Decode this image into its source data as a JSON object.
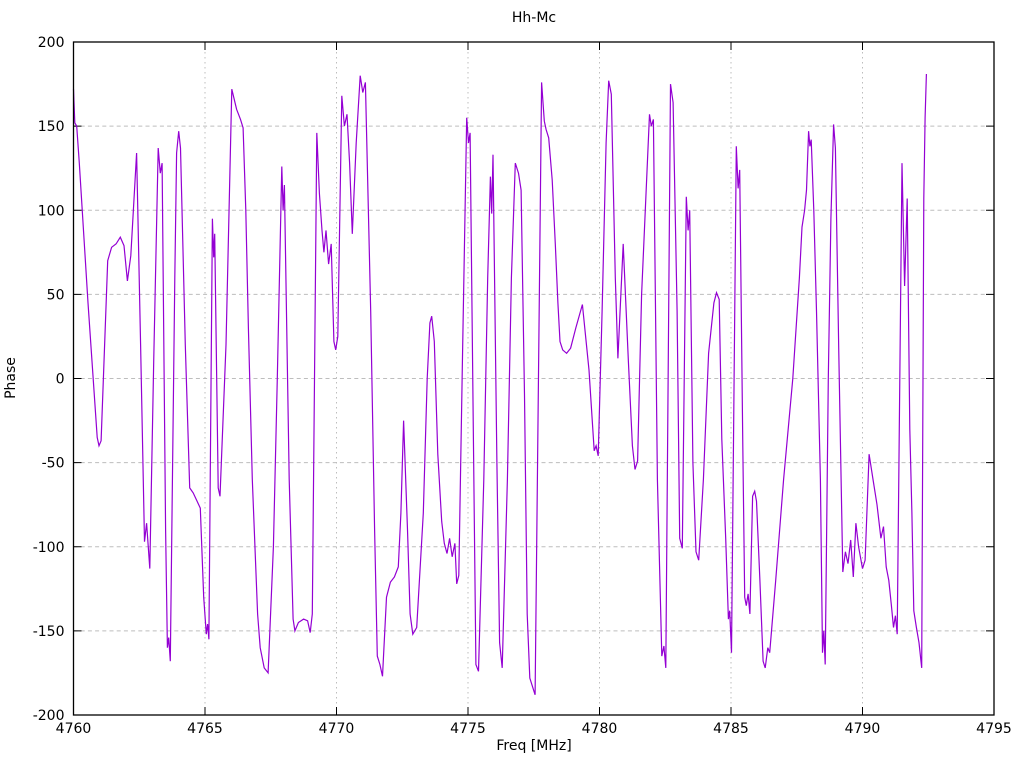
{
  "chart_data": {
    "type": "line",
    "title": "Hh-Mc",
    "xlabel": "Freq [MHz]",
    "ylabel": "Phase",
    "xlim": [
      4760,
      4795
    ],
    "ylim": [
      -200,
      200
    ],
    "xticks": [
      4760,
      4765,
      4770,
      4775,
      4780,
      4785,
      4790,
      4795
    ],
    "yticks": [
      -200,
      -150,
      -100,
      -50,
      0,
      50,
      100,
      150,
      200
    ],
    "grid": true,
    "legend": "none",
    "line_color": "#9400d3",
    "grid_color": "#bdbdbd",
    "border_color": "#000000",
    "series_name": "Hh-Mc",
    "points": [
      [
        4760.0,
        172
      ],
      [
        4760.05,
        152
      ],
      [
        4760.12,
        150
      ],
      [
        4760.22,
        128
      ],
      [
        4760.55,
        45
      ],
      [
        4760.9,
        -35
      ],
      [
        4760.97,
        -40
      ],
      [
        4761.05,
        -37
      ],
      [
        4761.3,
        70
      ],
      [
        4761.45,
        78
      ],
      [
        4761.62,
        80
      ],
      [
        4761.78,
        84
      ],
      [
        4761.92,
        79
      ],
      [
        4762.05,
        58
      ],
      [
        4762.18,
        73
      ],
      [
        4762.4,
        134
      ],
      [
        4762.55,
        20
      ],
      [
        4762.7,
        -97
      ],
      [
        4762.78,
        -86
      ],
      [
        4762.9,
        -113
      ],
      [
        4763.05,
        10
      ],
      [
        4763.22,
        137
      ],
      [
        4763.3,
        122
      ],
      [
        4763.37,
        128
      ],
      [
        4763.5,
        -90
      ],
      [
        4763.57,
        -160
      ],
      [
        4763.62,
        -154
      ],
      [
        4763.68,
        -168
      ],
      [
        4763.85,
        60
      ],
      [
        4763.92,
        134
      ],
      [
        4764.0,
        147
      ],
      [
        4764.07,
        137
      ],
      [
        4764.25,
        20
      ],
      [
        4764.42,
        -65
      ],
      [
        4764.55,
        -68
      ],
      [
        4764.7,
        -73
      ],
      [
        4764.82,
        -77
      ],
      [
        4764.95,
        -130
      ],
      [
        4765.05,
        -152
      ],
      [
        4765.1,
        -146
      ],
      [
        4765.15,
        -155
      ],
      [
        4765.28,
        95
      ],
      [
        4765.33,
        72
      ],
      [
        4765.37,
        86
      ],
      [
        4765.5,
        -65
      ],
      [
        4765.57,
        -70
      ],
      [
        4765.8,
        20
      ],
      [
        4766.02,
        172
      ],
      [
        4766.2,
        160
      ],
      [
        4766.35,
        154
      ],
      [
        4766.45,
        149
      ],
      [
        4766.55,
        100
      ],
      [
        4766.65,
        30
      ],
      [
        4766.8,
        -60
      ],
      [
        4767.0,
        -140
      ],
      [
        4767.1,
        -160
      ],
      [
        4767.25,
        -172
      ],
      [
        4767.4,
        -175
      ],
      [
        4767.6,
        -100
      ],
      [
        4767.75,
        0
      ],
      [
        4767.92,
        126
      ],
      [
        4767.97,
        100
      ],
      [
        4768.02,
        115
      ],
      [
        4768.2,
        -60
      ],
      [
        4768.35,
        -143
      ],
      [
        4768.42,
        -150
      ],
      [
        4768.55,
        -145
      ],
      [
        4768.75,
        -143
      ],
      [
        4768.9,
        -144
      ],
      [
        4769.0,
        -151
      ],
      [
        4769.08,
        -140
      ],
      [
        4769.25,
        146
      ],
      [
        4769.35,
        110
      ],
      [
        4769.45,
        88
      ],
      [
        4769.52,
        75
      ],
      [
        4769.6,
        88
      ],
      [
        4769.7,
        68
      ],
      [
        4769.8,
        80
      ],
      [
        4769.9,
        22
      ],
      [
        4769.97,
        17
      ],
      [
        4770.05,
        25
      ],
      [
        4770.2,
        168
      ],
      [
        4770.3,
        150
      ],
      [
        4770.4,
        157
      ],
      [
        4770.5,
        128
      ],
      [
        4770.6,
        86
      ],
      [
        4770.75,
        140
      ],
      [
        4770.9,
        180
      ],
      [
        4771.0,
        170
      ],
      [
        4771.1,
        176
      ],
      [
        4771.3,
        40
      ],
      [
        4771.45,
        -90
      ],
      [
        4771.55,
        -165
      ],
      [
        4771.65,
        -170
      ],
      [
        4771.75,
        -177
      ],
      [
        4771.9,
        -130
      ],
      [
        4772.05,
        -121
      ],
      [
        4772.2,
        -118
      ],
      [
        4772.35,
        -112
      ],
      [
        4772.45,
        -80
      ],
      [
        4772.55,
        -25
      ],
      [
        4772.7,
        -90
      ],
      [
        4772.8,
        -140
      ],
      [
        4772.9,
        -152
      ],
      [
        4773.05,
        -148
      ],
      [
        4773.3,
        -80
      ],
      [
        4773.45,
        0
      ],
      [
        4773.55,
        33
      ],
      [
        4773.62,
        37
      ],
      [
        4773.72,
        22
      ],
      [
        4773.85,
        -45
      ],
      [
        4774.0,
        -85
      ],
      [
        4774.1,
        -98
      ],
      [
        4774.2,
        -104
      ],
      [
        4774.3,
        -95
      ],
      [
        4774.4,
        -106
      ],
      [
        4774.5,
        -98
      ],
      [
        4774.57,
        -122
      ],
      [
        4774.65,
        -117
      ],
      [
        4774.8,
        20
      ],
      [
        4774.95,
        155
      ],
      [
        4775.02,
        140
      ],
      [
        4775.08,
        146
      ],
      [
        4775.2,
        -30
      ],
      [
        4775.3,
        -170
      ],
      [
        4775.4,
        -174
      ],
      [
        4775.6,
        -60
      ],
      [
        4775.75,
        60
      ],
      [
        4775.85,
        120
      ],
      [
        4775.9,
        98
      ],
      [
        4775.95,
        133
      ],
      [
        4776.1,
        -50
      ],
      [
        4776.2,
        -157
      ],
      [
        4776.3,
        -172
      ],
      [
        4776.5,
        -60
      ],
      [
        4776.65,
        60
      ],
      [
        4776.8,
        128
      ],
      [
        4776.92,
        122
      ],
      [
        4777.02,
        112
      ],
      [
        4777.15,
        -10
      ],
      [
        4777.25,
        -140
      ],
      [
        4777.35,
        -178
      ],
      [
        4777.55,
        -188
      ],
      [
        4777.8,
        176
      ],
      [
        4777.9,
        153
      ],
      [
        4777.97,
        148
      ],
      [
        4778.07,
        143
      ],
      [
        4778.2,
        118
      ],
      [
        4778.32,
        80
      ],
      [
        4778.42,
        45
      ],
      [
        4778.5,
        22
      ],
      [
        4778.6,
        17
      ],
      [
        4778.75,
        15
      ],
      [
        4778.9,
        18
      ],
      [
        4779.1,
        30
      ],
      [
        4779.35,
        44
      ],
      [
        4779.6,
        5
      ],
      [
        4779.8,
        -43
      ],
      [
        4779.87,
        -40
      ],
      [
        4779.95,
        -46
      ],
      [
        4780.1,
        40
      ],
      [
        4780.25,
        140
      ],
      [
        4780.35,
        177
      ],
      [
        4780.45,
        169
      ],
      [
        4780.6,
        60
      ],
      [
        4780.7,
        12
      ],
      [
        4780.9,
        80
      ],
      [
        4781.1,
        10
      ],
      [
        4781.25,
        -40
      ],
      [
        4781.35,
        -54
      ],
      [
        4781.45,
        -49
      ],
      [
        4781.6,
        50
      ],
      [
        4781.9,
        157
      ],
      [
        4781.97,
        150
      ],
      [
        4782.05,
        154
      ],
      [
        4782.2,
        -60
      ],
      [
        4782.37,
        -165
      ],
      [
        4782.45,
        -159
      ],
      [
        4782.52,
        -172
      ],
      [
        4782.7,
        175
      ],
      [
        4782.8,
        164
      ],
      [
        4782.95,
        40
      ],
      [
        4783.05,
        -95
      ],
      [
        4783.15,
        -101
      ],
      [
        4783.3,
        108
      ],
      [
        4783.37,
        88
      ],
      [
        4783.43,
        100
      ],
      [
        4783.55,
        -50
      ],
      [
        4783.67,
        -103
      ],
      [
        4783.77,
        -108
      ],
      [
        4783.95,
        -60
      ],
      [
        4784.15,
        15
      ],
      [
        4784.35,
        45
      ],
      [
        4784.45,
        51
      ],
      [
        4784.55,
        47
      ],
      [
        4784.65,
        -36
      ],
      [
        4784.8,
        -95
      ],
      [
        4784.9,
        -143
      ],
      [
        4784.95,
        -138
      ],
      [
        4785.02,
        -163
      ],
      [
        4785.2,
        138
      ],
      [
        4785.27,
        113
      ],
      [
        4785.33,
        124
      ],
      [
        4785.45,
        -40
      ],
      [
        4785.52,
        -130
      ],
      [
        4785.58,
        -135
      ],
      [
        4785.65,
        -128
      ],
      [
        4785.72,
        -140
      ],
      [
        4785.82,
        -70
      ],
      [
        4785.9,
        -67
      ],
      [
        4785.97,
        -73
      ],
      [
        4786.1,
        -120
      ],
      [
        4786.22,
        -168
      ],
      [
        4786.3,
        -172
      ],
      [
        4786.4,
        -160
      ],
      [
        4786.47,
        -163
      ],
      [
        4786.7,
        -120
      ],
      [
        4787.0,
        -60
      ],
      [
        4787.35,
        0
      ],
      [
        4787.6,
        60
      ],
      [
        4787.7,
        90
      ],
      [
        4787.8,
        100
      ],
      [
        4787.87,
        112
      ],
      [
        4787.95,
        147
      ],
      [
        4788.0,
        138
      ],
      [
        4788.05,
        142
      ],
      [
        4788.15,
        100
      ],
      [
        4788.25,
        40
      ],
      [
        4788.4,
        -60
      ],
      [
        4788.48,
        -163
      ],
      [
        4788.53,
        -150
      ],
      [
        4788.58,
        -170
      ],
      [
        4788.7,
        0
      ],
      [
        4788.8,
        95
      ],
      [
        4788.9,
        151
      ],
      [
        4788.97,
        137
      ],
      [
        4789.1,
        15
      ],
      [
        4789.25,
        -115
      ],
      [
        4789.35,
        -103
      ],
      [
        4789.45,
        -110
      ],
      [
        4789.55,
        -96
      ],
      [
        4789.65,
        -118
      ],
      [
        4789.75,
        -86
      ],
      [
        4789.85,
        -100
      ],
      [
        4790.0,
        -113
      ],
      [
        4790.1,
        -108
      ],
      [
        4790.25,
        -45
      ],
      [
        4790.4,
        -60
      ],
      [
        4790.55,
        -75
      ],
      [
        4790.7,
        -95
      ],
      [
        4790.8,
        -88
      ],
      [
        4790.9,
        -112
      ],
      [
        4791.0,
        -120
      ],
      [
        4791.1,
        -135
      ],
      [
        4791.18,
        -148
      ],
      [
        4791.25,
        -141
      ],
      [
        4791.32,
        -152
      ],
      [
        4791.5,
        128
      ],
      [
        4791.6,
        55
      ],
      [
        4791.7,
        107
      ],
      [
        4791.8,
        -30
      ],
      [
        4791.88,
        -80
      ],
      [
        4791.95,
        -138
      ],
      [
        4792.05,
        -148
      ],
      [
        4792.15,
        -157
      ],
      [
        4792.25,
        -172
      ],
      [
        4792.33,
        107
      ],
      [
        4792.38,
        155
      ],
      [
        4792.43,
        181
      ]
    ]
  }
}
